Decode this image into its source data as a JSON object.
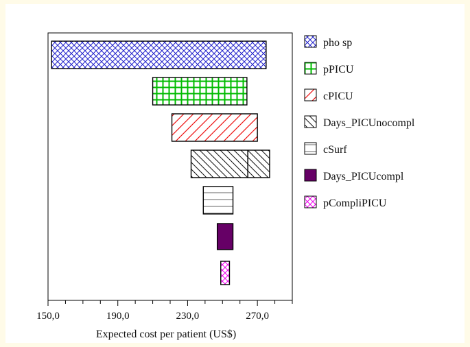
{
  "chart_data": {
    "type": "tornado",
    "xlabel": "Expected cost per patient (US$)",
    "xlim": [
      150,
      290
    ],
    "xticks": [
      150,
      190,
      230,
      270
    ],
    "xtick_labels": [
      "150,0",
      "190,0",
      "230,0",
      "270,0"
    ],
    "baseline_marker": 264.5,
    "series": [
      {
        "name": "pho sp",
        "low": 152,
        "high": 275,
        "pattern": "crosshatch-diag",
        "color": "#2222cc"
      },
      {
        "name": "pPICU",
        "low": 210,
        "high": 264,
        "pattern": "grid",
        "color": "#00bb00"
      },
      {
        "name": "cPICU",
        "low": 221,
        "high": 270,
        "pattern": "diag-up",
        "color": "#ee1111"
      },
      {
        "name": "Days_PICUnocompl",
        "low": 232,
        "high": 277,
        "pattern": "diag-down",
        "color": "#111111"
      },
      {
        "name": "cSurf",
        "low": 239,
        "high": 256,
        "pattern": "horizontal",
        "color": "#666666"
      },
      {
        "name": "Days_PICUcompl",
        "low": 247,
        "high": 256,
        "pattern": "solid",
        "color": "#660066"
      },
      {
        "name": "pCompliPICU",
        "low": 249,
        "high": 254,
        "pattern": "crosshatch",
        "color": "#ee00ee"
      }
    ],
    "legend": {
      "placement": "right"
    },
    "grid": false
  }
}
